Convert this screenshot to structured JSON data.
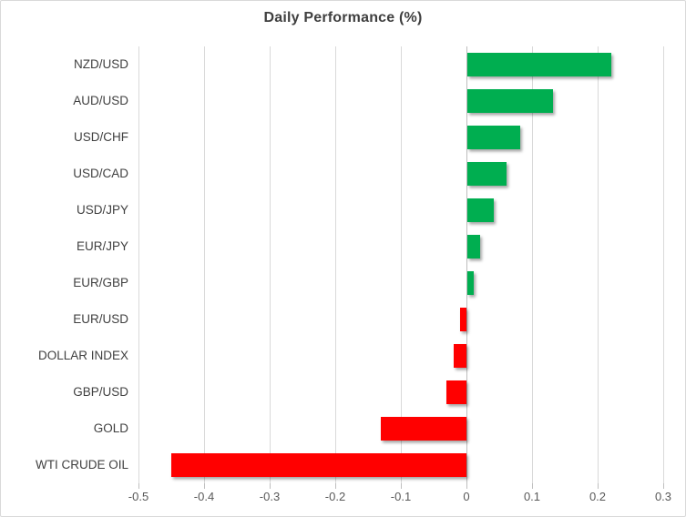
{
  "chart_data": {
    "type": "bar",
    "orientation": "horizontal",
    "title": "Daily Performance (%)",
    "categories": [
      "NZD/USD",
      "AUD/USD",
      "USD/CHF",
      "USD/CAD",
      "USD/JPY",
      "EUR/JPY",
      "EUR/GBP",
      "EUR/USD",
      "DOLLAR INDEX",
      "GBP/USD",
      "GOLD",
      "WTI CRUDE OIL"
    ],
    "values": [
      0.22,
      0.13,
      0.08,
      0.06,
      0.04,
      0.02,
      0.01,
      -0.01,
      -0.02,
      -0.03,
      -0.13,
      -0.45
    ],
    "xlabel": "",
    "ylabel": "",
    "xlim": [
      -0.5,
      0.3
    ],
    "x_ticks": [
      -0.5,
      -0.4,
      -0.3,
      -0.2,
      -0.1,
      0,
      0.1,
      0.2,
      0.3
    ],
    "x_tick_labels": [
      "-0.5",
      "-0.4",
      "-0.3",
      "-0.2",
      "-0.1",
      "0",
      "0.1",
      "0.2",
      "0.3"
    ],
    "grid": true,
    "legend": false,
    "colors": {
      "positive": "#00AE50",
      "negative": "#FF0000",
      "gridline": "#D9D9D9",
      "zero_line": "#BDBDBD",
      "tick_mark": "#BFBFBF",
      "title_text": "#3F3F3F",
      "category_text": "#404040",
      "tick_text": "#595959",
      "chart_border": "#D9D9D9",
      "background": "#FFFFFF"
    }
  }
}
